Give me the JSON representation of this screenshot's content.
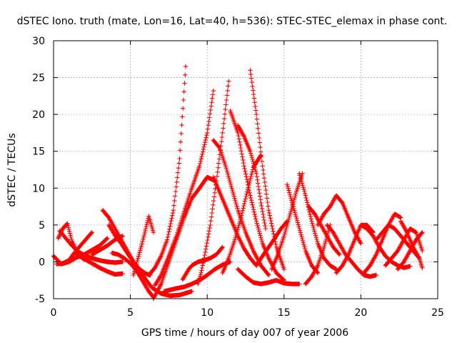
{
  "chart_data": {
    "type": "scatter",
    "title": "dSTEC Iono. truth (mate, Lon=16, Lat=40, h=536): STEC-STEC_elemax in phase cont.",
    "xlabel": "GPS time / hours of day 007 of year 2006",
    "ylabel": "dSTEC  / TECUs",
    "xlim": [
      0,
      25
    ],
    "ylim": [
      -5,
      30
    ],
    "xticks": [
      0,
      5,
      10,
      15,
      20,
      25
    ],
    "yticks": [
      -5,
      0,
      5,
      10,
      15,
      20,
      25,
      30
    ],
    "grid": true,
    "legend": "none",
    "marker": "plus",
    "color": "#ff0000",
    "series": [
      {
        "x": [
          0,
          0.5,
          1.0,
          1.5,
          2.0,
          2.5,
          3.0,
          3.5
        ],
        "values": [
          0.8,
          -0.3,
          0,
          0.6,
          1.0,
          1.6,
          2.2,
          3.2
        ]
      },
      {
        "x": [
          0.2,
          0.6,
          1.0,
          1.5,
          2.0,
          2.5
        ],
        "values": [
          -0.3,
          -0.2,
          0.2,
          1.6,
          2.8,
          4.0
        ]
      },
      {
        "x": [
          0.3,
          0.6,
          0.9,
          1.2,
          1.6,
          2.0
        ],
        "values": [
          3.2,
          4.5,
          5.2,
          2.8,
          1.0,
          0.3
        ]
      },
      {
        "x": [
          0.4,
          0.8,
          1.2,
          1.6,
          2.0,
          2.5,
          3.0,
          3.5,
          4.0,
          4.5
        ],
        "values": [
          4.2,
          3.2,
          2.2,
          1.4,
          0.9,
          0.5,
          0.2,
          0,
          -0.1,
          0
        ]
      },
      {
        "x": [
          1.5,
          2.0,
          2.5,
          3.0,
          3.5,
          4.0,
          4.5
        ],
        "values": [
          1.0,
          0.4,
          -0.2,
          -0.8,
          -1.3,
          -1.7,
          -1.6
        ]
      },
      {
        "x": [
          2.5,
          3.0,
          3.5,
          4.0,
          4.5
        ],
        "values": [
          1.0,
          1.6,
          2.2,
          3.0,
          3.5
        ]
      },
      {
        "x": [
          3.2,
          3.6,
          4.0,
          4.4,
          4.8,
          5.2,
          5.6,
          6.0,
          6.3
        ],
        "values": [
          7.0,
          6.0,
          4.5,
          3.0,
          1.5,
          0,
          -1.0,
          -1.6,
          -1.8
        ]
      },
      {
        "x": [
          3.6,
          4.0,
          4.4,
          4.8,
          5.2,
          5.6,
          6.0,
          6.4,
          7.0,
          7.6,
          8.2,
          9.0
        ],
        "values": [
          5.0,
          3.6,
          2.5,
          1.2,
          0,
          -1.2,
          -2.4,
          -3.5,
          -4.3,
          -4.6,
          -4.5,
          -4.0
        ]
      },
      {
        "x": [
          3.8,
          4.2,
          4.6,
          5.0,
          5.4,
          5.8,
          6.2,
          6.5
        ],
        "values": [
          1.2,
          1.0,
          0.5,
          -0.2,
          -1.2,
          -2.6,
          -4.0,
          -4.8
        ]
      },
      {
        "x": [
          5.2,
          5.5,
          5.8,
          6.0,
          6.2,
          6.5
        ],
        "values": [
          -1.8,
          0.5,
          2.8,
          4.5,
          6.2,
          4.0
        ]
      },
      {
        "x": [
          6.2,
          6.6,
          7.0,
          7.4,
          7.8,
          8.2,
          8.6
        ],
        "values": [
          -1.8,
          -0.8,
          0.8,
          3.0,
          7.0,
          14.0,
          26.5
        ]
      },
      {
        "x": [
          6.5,
          7.0,
          7.5,
          8.0,
          8.5,
          9.0,
          9.5,
          10.0,
          10.5
        ],
        "values": [
          -5.0,
          -3.0,
          0,
          3.0,
          6.0,
          8.6,
          10.0,
          11.5,
          11.0
        ]
      },
      {
        "x": [
          6.6,
          7.0,
          7.5,
          8.0,
          8.5,
          9.0,
          9.5,
          10.0,
          10.4
        ],
        "values": [
          -3.2,
          -1.8,
          0.8,
          3.5,
          6.8,
          10.0,
          13.0,
          17.5,
          23.2
        ]
      },
      {
        "x": [
          7.2,
          7.6,
          8.0,
          8.5,
          9.0,
          9.5,
          10.0,
          10.5,
          11.0,
          11.5
        ],
        "values": [
          -4.0,
          -3.8,
          -3.6,
          -3.4,
          -3.0,
          -2.5,
          -1.8,
          -1.0,
          -0.4,
          0
        ]
      },
      {
        "x": [
          8.4,
          8.8,
          9.0,
          9.4,
          9.8,
          10.2,
          10.6,
          11.0
        ],
        "values": [
          -2.4,
          -1.0,
          -0.5,
          0,
          0.2,
          0.5,
          1.0,
          2.0
        ]
      },
      {
        "x": [
          9.4,
          9.6,
          9.8,
          10.2,
          10.6,
          11.0,
          11.4
        ],
        "values": [
          -3.0,
          -1.5,
          0.5,
          5.0,
          11.0,
          17.5,
          24.5
        ]
      },
      {
        "x": [
          10.4,
          10.8,
          11.2,
          11.6,
          12.0,
          12.4,
          12.8,
          13.2
        ],
        "values": [
          11.5,
          9.5,
          7.5,
          5.5,
          3.5,
          1.8,
          0.5,
          -0.5
        ]
      },
      {
        "x": [
          10.4,
          10.8,
          11.2,
          11.6,
          12.0,
          12.5,
          13.0,
          13.5,
          14.0
        ],
        "values": [
          16.5,
          15.5,
          13.0,
          10.0,
          7.0,
          4.0,
          1.5,
          -0.5,
          -1.8
        ]
      },
      {
        "x": [
          11.5,
          12.0,
          12.4,
          12.8,
          13.2,
          13.6,
          14.0,
          14.5,
          15.0
        ],
        "values": [
          20.5,
          17.5,
          13.0,
          9.0,
          5.5,
          2.5,
          0.5,
          -1.5,
          -2.5
        ]
      },
      {
        "x": [
          12.0,
          12.4,
          12.8,
          13.2,
          13.5,
          13.8
        ],
        "values": [
          18.5,
          17.0,
          15.0,
          12.0,
          8.0,
          4.5
        ]
      },
      {
        "x": [
          12.8,
          13.2,
          13.6,
          14.0,
          14.5,
          15.0
        ],
        "values": [
          26.0,
          20.0,
          13.0,
          7.0,
          2.0,
          -1.0
        ]
      },
      {
        "x": [
          11.0,
          11.4,
          11.8,
          12.2,
          12.6,
          13.0,
          13.5
        ],
        "values": [
          -1.5,
          0.5,
          3.0,
          6.0,
          9.5,
          12.8,
          14.5
        ]
      },
      {
        "x": [
          12.0,
          12.5,
          13.0,
          13.5,
          14.0,
          14.5,
          15.0,
          15.5,
          16.0
        ],
        "values": [
          -1.0,
          -2.0,
          -2.8,
          -3.0,
          -2.8,
          -2.5,
          -2.9,
          -3.0,
          -3.0
        ]
      },
      {
        "x": [
          13.2,
          13.6,
          14.0,
          14.4,
          14.8,
          15.2
        ],
        "values": [
          -0.5,
          0.8,
          2.0,
          3.2,
          4.5,
          5.5
        ]
      },
      {
        "x": [
          14.2,
          14.6,
          15.0,
          15.4,
          15.8,
          16.2
        ],
        "values": [
          -1.0,
          1.0,
          3.5,
          6.5,
          9.5,
          12.0
        ]
      },
      {
        "x": [
          15.2,
          15.6,
          16.0,
          16.4,
          16.8,
          17.2
        ],
        "values": [
          10.5,
          7.5,
          4.5,
          1.5,
          -0.5,
          -1.5
        ]
      },
      {
        "x": [
          16.0,
          16.4,
          16.8,
          17.2,
          17.6,
          18.0,
          18.4
        ],
        "values": [
          12.0,
          9.0,
          5.5,
          2.5,
          0.5,
          -0.5,
          -1.0
        ]
      },
      {
        "x": [
          16.4,
          16.8,
          17.2,
          17.6,
          18.0
        ],
        "values": [
          -3.0,
          -2.0,
          -0.5,
          2.0,
          5.0
        ]
      },
      {
        "x": [
          16.6,
          17.0,
          17.4,
          17.8,
          18.2,
          18.6
        ],
        "values": [
          7.5,
          6.5,
          5.0,
          3.5,
          2.0,
          1.0
        ]
      },
      {
        "x": [
          17.2,
          17.6,
          18.0,
          18.4,
          18.8,
          19.2,
          19.6,
          20.0
        ],
        "values": [
          5.0,
          6.5,
          7.5,
          9.0,
          8.0,
          6.0,
          4.0,
          2.5
        ]
      },
      {
        "x": [
          17.8,
          18.2,
          18.6,
          19.0,
          19.4,
          19.8,
          20.2,
          20.6,
          21.0
        ],
        "values": [
          5.0,
          4.0,
          2.5,
          1.0,
          0,
          -1.0,
          -1.8,
          -2.0,
          -1.8
        ]
      },
      {
        "x": [
          18.4,
          18.8,
          19.2,
          19.6,
          20.0,
          20.4,
          20.8
        ],
        "values": [
          -1.5,
          -0.5,
          1.0,
          3.0,
          5.0,
          5.0,
          4.0
        ]
      },
      {
        "x": [
          20.0,
          20.4,
          20.8,
          21.2,
          21.6,
          22.0,
          22.4,
          22.8,
          23.2
        ],
        "values": [
          5.0,
          4.5,
          3.5,
          2.0,
          0.8,
          0,
          -0.5,
          -0.8,
          -0.6
        ]
      },
      {
        "x": [
          20.2,
          20.6,
          21.0,
          21.4,
          21.8,
          22.2,
          22.6
        ],
        "values": [
          -1.5,
          -0.5,
          1.0,
          3.0,
          5.0,
          6.5,
          6.0
        ]
      },
      {
        "x": [
          21.0,
          21.4,
          21.8,
          22.2,
          22.6,
          23.0,
          23.4,
          23.8
        ],
        "values": [
          3.0,
          4.0,
          5.0,
          4.5,
          3.5,
          2.5,
          1.5,
          0.5
        ]
      },
      {
        "x": [
          21.6,
          22.0,
          22.4,
          22.8,
          23.2,
          23.6,
          24.0
        ],
        "values": [
          -0.5,
          0.5,
          1.5,
          3.0,
          4.5,
          4.0,
          1.5
        ]
      },
      {
        "x": [
          22.6,
          23.0,
          23.4,
          23.8,
          24.0
        ],
        "values": [
          5.5,
          4.0,
          2.0,
          0.5,
          -0.8
        ]
      },
      {
        "x": [
          22.4,
          22.8,
          23.2,
          23.6,
          24.0
        ],
        "values": [
          -1.0,
          0,
          1.5,
          3.0,
          4.0
        ]
      }
    ]
  }
}
